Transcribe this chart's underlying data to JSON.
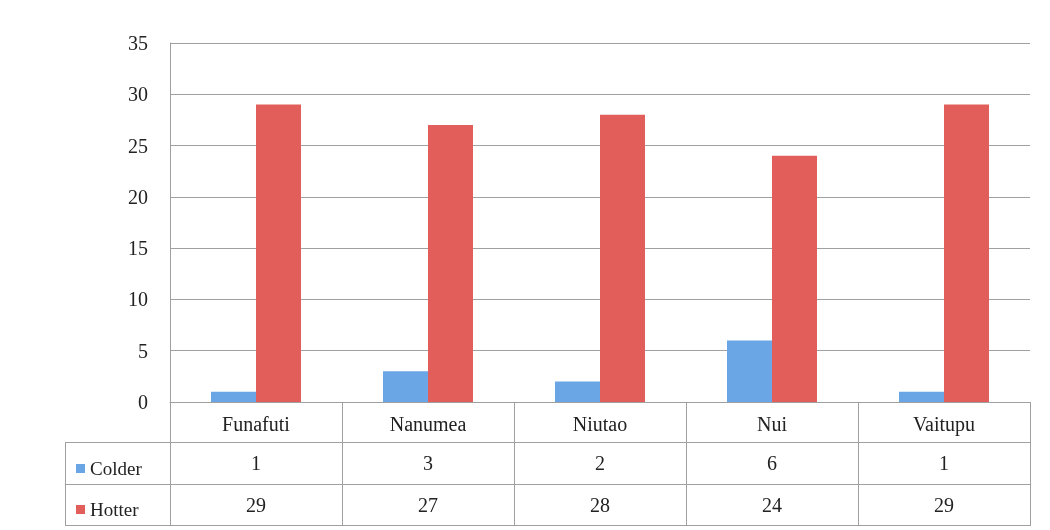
{
  "chart_data": {
    "type": "bar",
    "categories": [
      "Funafuti",
      "Nanumea",
      "Niutao",
      "Nui",
      "Vaitupu"
    ],
    "series": [
      {
        "name": "Colder",
        "color": "#6aa6e6",
        "values": [
          1,
          3,
          2,
          6,
          1
        ]
      },
      {
        "name": "Hotter",
        "color": "#e25e5b",
        "values": [
          29,
          27,
          28,
          24,
          29
        ]
      }
    ],
    "ylim": [
      0,
      35
    ],
    "yticks": [
      0,
      5,
      10,
      15,
      20,
      25,
      30,
      35
    ],
    "grid": "y",
    "legend": "bottom left",
    "data_labels": true
  }
}
